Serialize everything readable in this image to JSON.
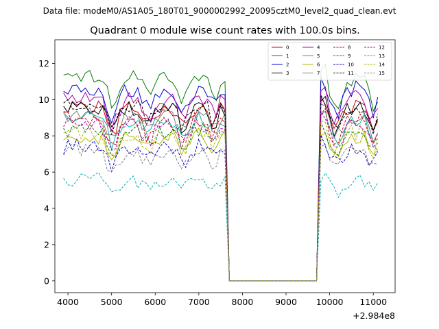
{
  "suptitle": "Data file: modeM0/AS1A05_180T01_9000002992_20095cztM0_level2_quad_clean.evt",
  "chart_data": {
    "type": "line",
    "title": "Quadrant 0 module wise count rates with 100.0s bins.",
    "xlabel": "",
    "ylabel": "",
    "x_offset_label": "+2.984e8",
    "xlim": [
      3700,
      11500
    ],
    "ylim": [
      -0.65,
      13.3
    ],
    "xticks": [
      4000,
      5000,
      6000,
      7000,
      8000,
      9000,
      10000,
      11000
    ],
    "xtick_labels": [
      "4000",
      "5000",
      "6000",
      "7000",
      "8000",
      "9000",
      "10000",
      "11000"
    ],
    "yticks": [
      0,
      2,
      4,
      6,
      8,
      10,
      12
    ],
    "ytick_labels": [
      "0",
      "2",
      "4",
      "6",
      "8",
      "10",
      "12"
    ],
    "legend_position": "top-right",
    "segments": [
      {
        "x_start": 3900,
        "x_end": 7600
      },
      {
        "x_start": 7700,
        "x_end": 9700
      },
      {
        "x_start": 9800,
        "x_end": 11150
      }
    ],
    "series": [
      {
        "name": "0",
        "color": "#cc0000",
        "dashed": false,
        "level": 9.6
      },
      {
        "name": "1",
        "color": "#007a00",
        "dashed": false,
        "level": 11.2
      },
      {
        "name": "2",
        "color": "#0000cc",
        "dashed": false,
        "level": 10.6
      },
      {
        "name": "3",
        "color": "#000000",
        "dashed": false,
        "level": 9.5
      },
      {
        "name": "4",
        "color": "#b000b0",
        "dashed": false,
        "level": 10.1
      },
      {
        "name": "5",
        "color": "#00b0a0",
        "dashed": false,
        "level": 8.9
      },
      {
        "name": "6",
        "color": "#b5b500",
        "dashed": false,
        "level": 8.0
      },
      {
        "name": "7",
        "color": "#808080",
        "dashed": false,
        "level": 9.1
      },
      {
        "name": "8",
        "color": "#cc0000",
        "dashed": true,
        "level": 8.9
      },
      {
        "name": "9",
        "color": "#007a00",
        "dashed": true,
        "level": 8.3
      },
      {
        "name": "10",
        "color": "#0000cc",
        "dashed": true,
        "level": 7.4
      },
      {
        "name": "11",
        "color": "#000000",
        "dashed": true,
        "level": 9.7
      },
      {
        "name": "12",
        "color": "#b000b0",
        "dashed": true,
        "level": 8.6
      },
      {
        "name": "13",
        "color": "#00b0b0",
        "dashed": true,
        "level": 5.6
      },
      {
        "name": "14",
        "color": "#b5b500",
        "dashed": true,
        "level": 8.2
      },
      {
        "name": "15",
        "color": "#808080",
        "dashed": true,
        "level": 7.1
      }
    ]
  }
}
